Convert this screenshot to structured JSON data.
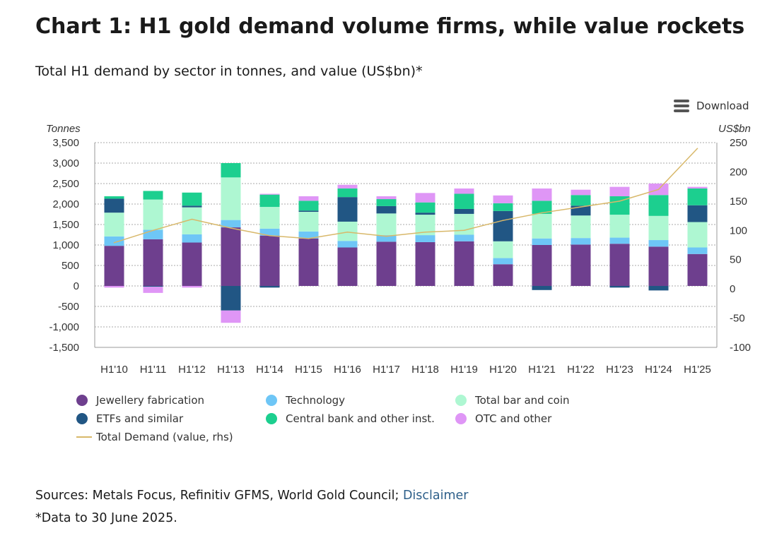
{
  "header": {
    "title": "Chart 1: H1 gold demand volume firms, while value rockets",
    "subtitle": "Total H1 demand by sector in tonnes, and value (US$bn)*"
  },
  "toolbar": {
    "download_label": "Download",
    "download_icon": "menu-icon"
  },
  "footer": {
    "sources_text": "Sources: Metals Focus, Refinitiv GFMS, World Gold Council; ",
    "disclaimer_label": "Disclaimer",
    "note": "*Data to 30 June 2025."
  },
  "chart_data": {
    "type": "bar",
    "stacked": true,
    "title": "Chart 1: H1 gold demand volume firms, while value rockets",
    "subtitle": "Total H1 demand by sector in tonnes, and value (US$bn)*",
    "ylabel": "Tonnes",
    "y2label": "US$bn",
    "ylim": [
      -1500,
      3500
    ],
    "y2lim": [
      -100,
      250
    ],
    "yticks": [
      3500,
      3000,
      2500,
      2000,
      1500,
      1000,
      500,
      0,
      -500,
      -1000,
      -1500
    ],
    "yticklabels": [
      "3,500",
      "3,000",
      "2,500",
      "2,000",
      "1,500",
      "1,000",
      "500",
      "0",
      "-500",
      "-1,000",
      "-1,500"
    ],
    "y2ticks": [
      250,
      200,
      150,
      100,
      50,
      0,
      -50,
      -100
    ],
    "y2ticklabels": [
      "250",
      "200",
      "150",
      "100",
      "50",
      "0",
      "-50",
      "-100"
    ],
    "grid": true,
    "legend_position": "bottom",
    "categories": [
      "H1'10",
      "H1'11",
      "H1'12",
      "H1'13",
      "H1'14",
      "H1'15",
      "H1'16",
      "H1'17",
      "H1'18",
      "H1'19",
      "H1'20",
      "H1'21",
      "H1'22",
      "H1'23",
      "H1'24",
      "H1'25"
    ],
    "series": [
      {
        "name": "Jewellery fabrication",
        "color": "#6e3f8e",
        "values": [
          980,
          1140,
          1060,
          1430,
          1230,
          1160,
          940,
          1080,
          1070,
          1090,
          530,
          1000,
          1010,
          1030,
          960,
          780
        ]
      },
      {
        "name": "Technology",
        "color": "#6ec6f6",
        "values": [
          230,
          230,
          200,
          180,
          170,
          170,
          160,
          160,
          170,
          160,
          150,
          160,
          160,
          150,
          160,
          160
        ]
      },
      {
        "name": "Total bar and coin",
        "color": "#aef7d2",
        "values": [
          580,
          740,
          660,
          1040,
          530,
          480,
          470,
          530,
          500,
          510,
          410,
          600,
          550,
          560,
          590,
          620
        ]
      },
      {
        "name": "ETFs and similar",
        "color": "#215684",
        "values": [
          340,
          -20,
          40,
          -600,
          -40,
          30,
          600,
          180,
          50,
          120,
          740,
          -100,
          240,
          -40,
          -110,
          410
        ]
      },
      {
        "name": "Central bank and other inst.",
        "color": "#1ccf8f",
        "values": [
          60,
          210,
          320,
          350,
          300,
          240,
          210,
          170,
          250,
          370,
          190,
          320,
          260,
          450,
          510,
          410
        ]
      },
      {
        "name": "OTC and other",
        "color": "#df96f6",
        "values": [
          -40,
          -150,
          -40,
          -300,
          20,
          110,
          90,
          70,
          230,
          130,
          190,
          300,
          130,
          230,
          280,
          40
        ]
      }
    ],
    "line_series": {
      "name": "Total Demand (value, rhs)",
      "color": "#d8b86a",
      "axis": "rhs",
      "values": [
        79,
        100,
        119,
        104,
        91,
        86,
        97,
        90,
        97,
        100,
        117,
        130,
        140,
        150,
        170,
        240
      ]
    }
  }
}
